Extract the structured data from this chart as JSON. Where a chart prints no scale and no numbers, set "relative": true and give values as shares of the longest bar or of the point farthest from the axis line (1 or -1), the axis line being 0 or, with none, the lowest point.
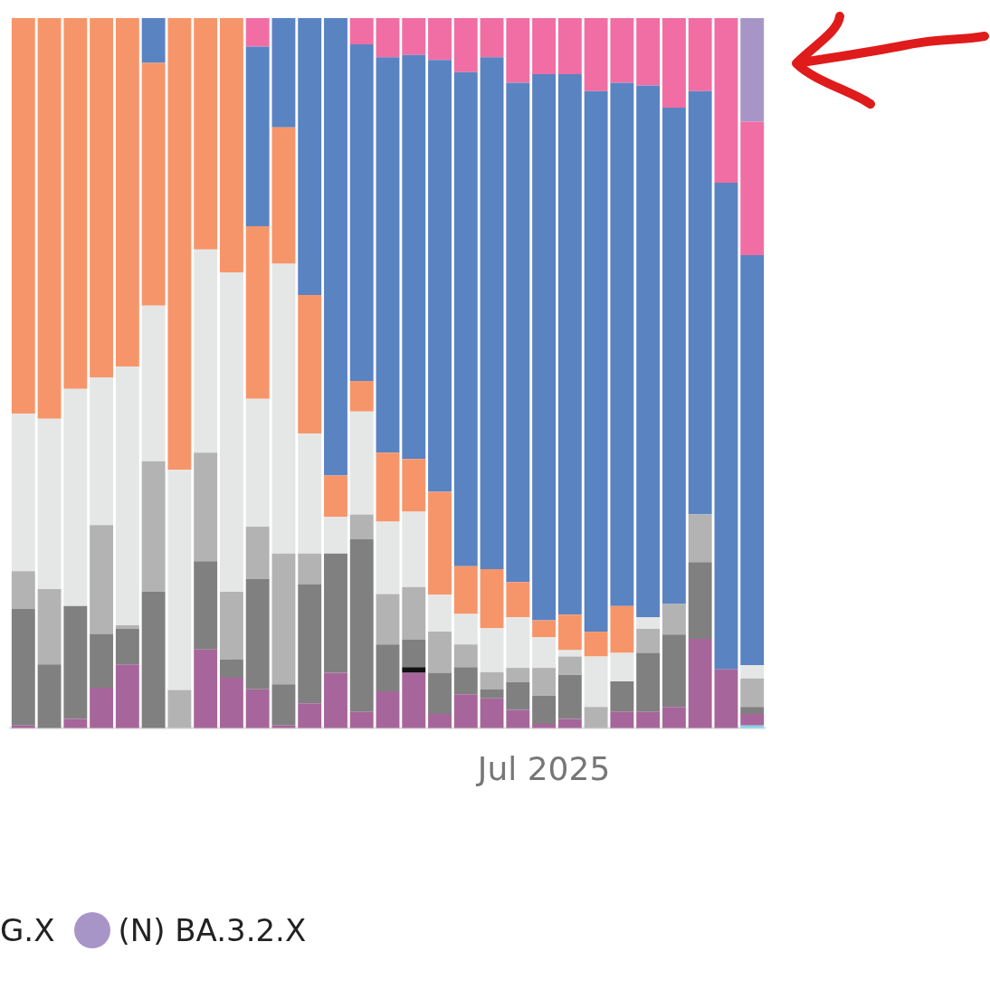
{
  "chart_data": {
    "type": "bar",
    "stacked": true,
    "relative": true,
    "grid": false,
    "legend": "bottom left",
    "categories": [
      null,
      null,
      null,
      null,
      null,
      null,
      null,
      null,
      null,
      null,
      null,
      null,
      null,
      null,
      null,
      null,
      null,
      null,
      null,
      null,
      "Jul 2025",
      null,
      null,
      null,
      null,
      null,
      null,
      null,
      null
    ],
    "annotations": [
      "G.X"
    ],
    "series": [
      {
        "color": "#7fd6e8",
        "values": [
          0,
          0,
          0,
          0,
          0,
          0,
          0,
          0,
          0,
          0,
          0,
          0,
          0,
          0,
          0,
          0,
          0,
          0,
          0,
          0,
          0,
          0,
          0,
          0,
          0,
          0,
          0,
          0,
          0.004
        ]
      },
      {
        "color": "#a6669b",
        "values": [
          0.004,
          0,
          0.013,
          0.057,
          0.09,
          0,
          0,
          0.111,
          0.071,
          0.055,
          0.004,
          0.035,
          0.078,
          0.023,
          0.052,
          0.078,
          0.02,
          0.048,
          0.042,
          0.026,
          0.006,
          0.013,
          0,
          0.023,
          0.023,
          0.03,
          0.126,
          0.083,
          0.016
        ]
      },
      {
        "color": "#111111",
        "values": [
          0,
          0,
          0,
          0,
          0,
          0,
          0,
          0,
          0,
          0,
          0,
          0,
          0,
          0,
          0,
          0.008,
          0,
          0,
          0,
          0,
          0,
          0,
          0,
          0,
          0,
          0,
          0,
          0,
          0
        ]
      },
      {
        "color": "#808080",
        "values": [
          0.164,
          0.09,
          0.159,
          0.076,
          0.05,
          0.192,
          0,
          0.124,
          0.026,
          0.155,
          0.058,
          0.168,
          0.168,
          0.243,
          0.066,
          0.039,
          0.058,
          0.038,
          0.013,
          0.039,
          0.04,
          0.062,
          0,
          0.043,
          0.083,
          0.102,
          0.108,
          0,
          0.01
        ]
      },
      {
        "color": "#b3b3b3",
        "values": [
          0.053,
          0.106,
          0,
          0.153,
          0.005,
          0.184,
          0.054,
          0.153,
          0.095,
          0.074,
          0.184,
          0.043,
          0,
          0.035,
          0.071,
          0.074,
          0.058,
          0.032,
          0.024,
          0.02,
          0.039,
          0.026,
          0.03,
          0,
          0.034,
          0.043,
          0.067,
          0,
          0.04
        ]
      },
      {
        "color": "#e5e7e6",
        "values": [
          0.222,
          0.24,
          0.306,
          0.208,
          0.364,
          0.219,
          0.31,
          0.286,
          0.45,
          0.18,
          0.408,
          0.169,
          0.052,
          0.145,
          0.102,
          0.106,
          0.052,
          0.043,
          0.062,
          0.071,
          0.043,
          0.009,
          0.071,
          0.04,
          0.016,
          0,
          0,
          0,
          0.019
        ]
      },
      {
        "color": "#f7956a",
        "values": [
          0.557,
          0.564,
          0.522,
          0.506,
          0.491,
          0.342,
          0.636,
          0.326,
          0.358,
          0.243,
          0.192,
          0.195,
          0.058,
          0.043,
          0.097,
          0.074,
          0.145,
          0.067,
          0.083,
          0.05,
          0.024,
          0.05,
          0.035,
          0.066,
          0,
          0,
          0,
          0,
          0
        ]
      },
      {
        "color": "#5a83c2",
        "values": [
          0,
          0,
          0,
          0,
          0,
          0.063,
          0,
          0,
          0,
          0.253,
          0.154,
          0.39,
          0.644,
          0.474,
          0.557,
          0.569,
          0.608,
          0.696,
          0.721,
          0.703,
          0.769,
          0.761,
          0.761,
          0.737,
          0.749,
          0.699,
          0.596,
          0.685,
          0.577
        ]
      },
      {
        "color": "#f06ea4",
        "values": [
          0,
          0,
          0,
          0,
          0,
          0,
          0,
          0,
          0,
          0.04,
          0,
          0,
          0,
          0.037,
          0.055,
          0.052,
          0.059,
          0.076,
          0.055,
          0.091,
          0.079,
          0.079,
          0.103,
          0.091,
          0.095,
          0.126,
          0.103,
          0.232,
          0.188
        ]
      },
      {
        "name": "(N) BA.3.2.X",
        "color": "#a895c8",
        "values": [
          0,
          0,
          0,
          0,
          0,
          0,
          0,
          0,
          0,
          0,
          0,
          0,
          0,
          0,
          0,
          0,
          0,
          0,
          0,
          0,
          0,
          0,
          0,
          0,
          0,
          0,
          0,
          0,
          0.146
        ]
      }
    ]
  }
}
